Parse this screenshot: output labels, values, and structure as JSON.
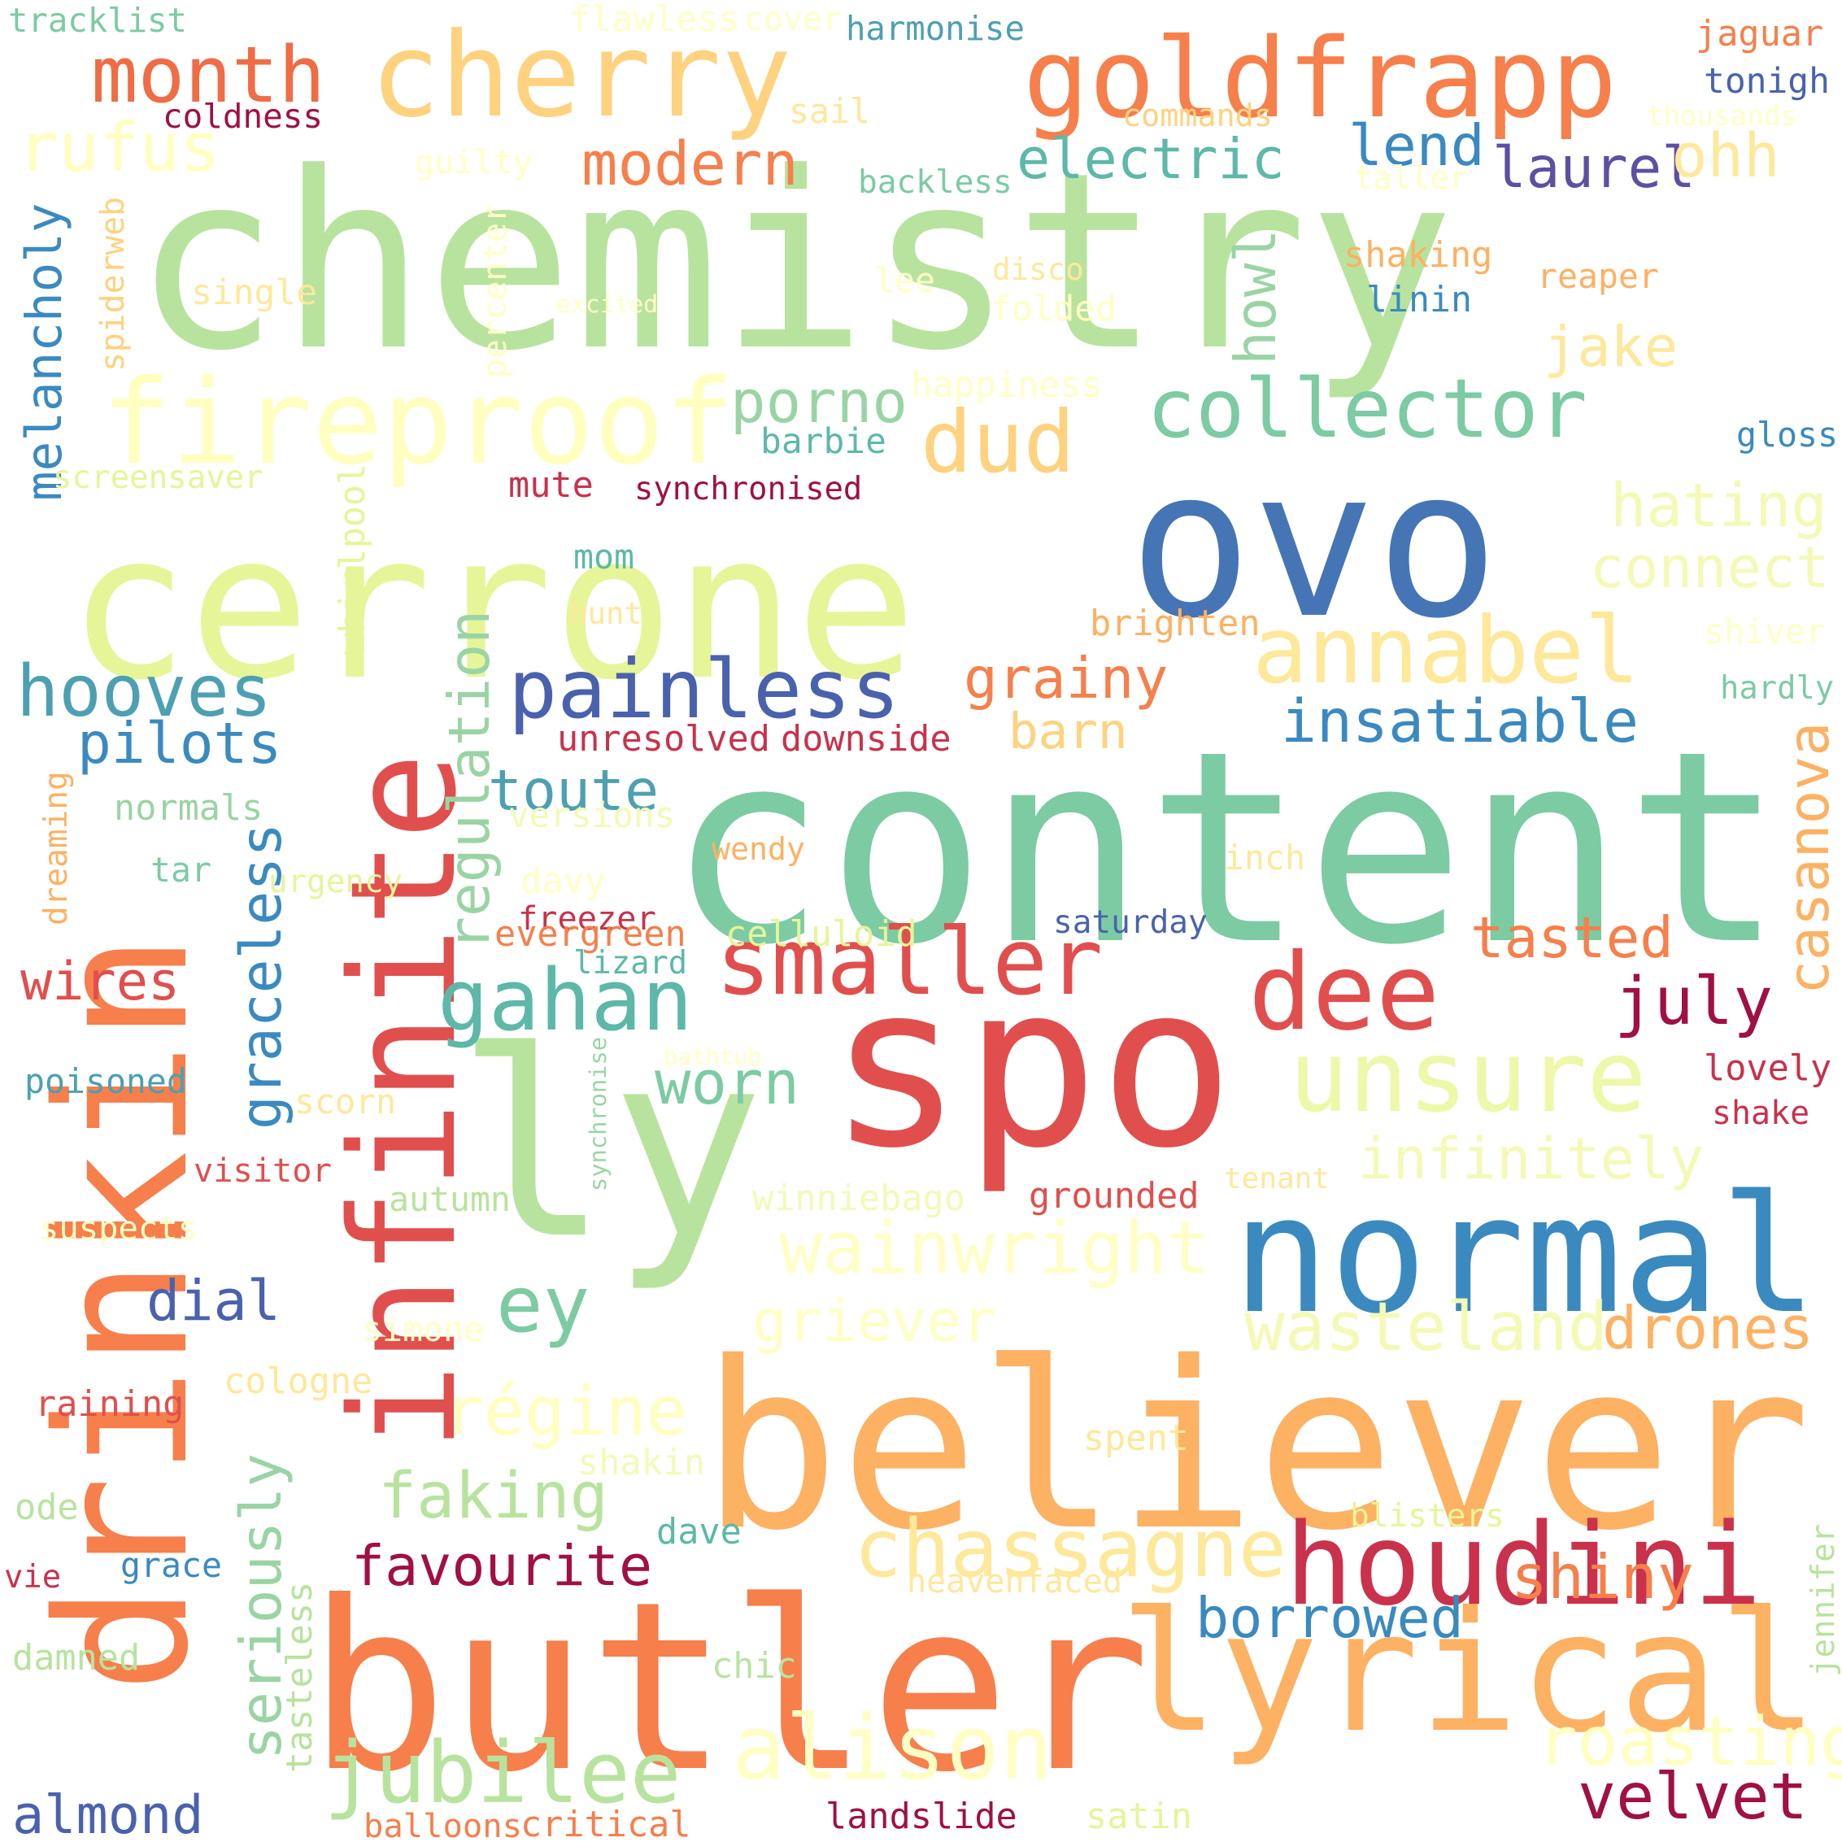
{
  "words": [
    {
      "text": "chemistry",
      "color": "#b8e39e",
      "rot": 0
    },
    {
      "text": "content",
      "color": "#7ccba2",
      "rot": 0
    },
    {
      "text": "cerrone",
      "color": "#e6f598",
      "rot": 0
    },
    {
      "text": "ovo",
      "color": "#4575b4",
      "rot": 0
    },
    {
      "text": "believer",
      "color": "#fdb162",
      "rot": 0
    },
    {
      "text": "butler",
      "color": "#f67f4b",
      "rot": 0
    },
    {
      "text": "spo",
      "color": "#e04f4e",
      "rot": 0
    },
    {
      "text": "ly",
      "color": "#b8e39e",
      "rot": 0
    },
    {
      "text": "drinkin",
      "color": "#f67f4b",
      "rot": -90
    },
    {
      "text": "infinite",
      "color": "#e04f4e",
      "rot": -90
    },
    {
      "text": "normal",
      "color": "#3a8ac0",
      "rot": 0
    },
    {
      "text": "cherry",
      "color": "#fed27f",
      "rot": 0
    },
    {
      "text": "goldfrapp",
      "color": "#f67f4b",
      "rot": 0
    },
    {
      "text": "lyrical",
      "color": "#fdb162",
      "rot": 0
    },
    {
      "text": "dee",
      "color": "#e04f4e",
      "rot": 0
    },
    {
      "text": "fireproof",
      "color": "#ffffbf",
      "rot": 0
    },
    {
      "text": "houdini",
      "color": "#c9314c",
      "rot": 0
    },
    {
      "text": "unsure",
      "color": "#eef8a9",
      "rot": 0
    },
    {
      "text": "smaller",
      "color": "#e04f4e",
      "rot": 0
    },
    {
      "text": "annabel",
      "color": "#fee89a",
      "rot": 0
    },
    {
      "text": "collector",
      "color": "#7ccba2",
      "rot": 0
    },
    {
      "text": "painless",
      "color": "#4a62ad",
      "rot": 0
    },
    {
      "text": "month",
      "color": "#ef6c45",
      "rot": 0
    },
    {
      "text": "gahan",
      "color": "#5db8a8",
      "rot": 0
    },
    {
      "text": "regulation",
      "color": "#9ad4a4",
      "rot": -90
    },
    {
      "text": "hooves",
      "color": "#4da0b1",
      "rot": 0
    },
    {
      "text": "rufus",
      "color": "#ffffbf",
      "rot": 0
    },
    {
      "text": "ey",
      "color": "#7ccba2",
      "rot": 0
    },
    {
      "text": "jubilee",
      "color": "#b8e39e",
      "rot": 0
    },
    {
      "text": "alison",
      "color": "#ffffc5",
      "rot": 0
    },
    {
      "text": "chassagne",
      "color": "#fee89a",
      "rot": 0
    },
    {
      "text": "wainwright",
      "color": "#ffffc5",
      "rot": 0
    },
    {
      "text": "wasteland",
      "color": "#f4fab6",
      "rot": 0
    },
    {
      "text": "velvet",
      "color": "#a01044",
      "rot": 0
    },
    {
      "text": "borrowed",
      "color": "#3a8ac0",
      "rot": 0
    },
    {
      "text": "dud",
      "color": "#fed27f",
      "rot": 0
    },
    {
      "text": "pilots",
      "color": "#3a8ac0",
      "rot": 0
    },
    {
      "text": "insatiable",
      "color": "#3a8ac0",
      "rot": 0
    },
    {
      "text": "toute",
      "color": "#4da0b1",
      "rot": 0
    },
    {
      "text": "graceless",
      "color": "#3a8ac0",
      "rot": -90
    },
    {
      "text": "seriously",
      "color": "#9ad4a4",
      "rot": -90
    },
    {
      "text": "faking",
      "color": "#b8e39e",
      "rot": 0
    },
    {
      "text": "favourite",
      "color": "#a01044",
      "rot": 0
    },
    {
      "text": "régine",
      "color": "#ffffbf",
      "rot": 0
    },
    {
      "text": "griever",
      "color": "#ffffc5",
      "rot": 0
    },
    {
      "text": "drones",
      "color": "#fdb162",
      "rot": 0
    },
    {
      "text": "shiny",
      "color": "#f67f4b",
      "rot": 0
    },
    {
      "text": "roasting",
      "color": "#ffffbf",
      "rot": 0
    },
    {
      "text": "infinitely",
      "color": "#f4fab6",
      "rot": 0
    },
    {
      "text": "tasted",
      "color": "#f67f4b",
      "rot": 0
    },
    {
      "text": "july",
      "color": "#a01044",
      "rot": 0
    },
    {
      "text": "casanova",
      "color": "#fdb162",
      "rot": -90
    },
    {
      "text": "hating",
      "color": "#f4fab6",
      "rot": 0
    },
    {
      "text": "connect",
      "color": "#f4fab6",
      "rot": 0
    },
    {
      "text": "grainy",
      "color": "#f67f4b",
      "rot": 0
    },
    {
      "text": "barn",
      "color": "#fed27f",
      "rot": 0
    },
    {
      "text": "porno",
      "color": "#9ad4a4",
      "rot": 0
    },
    {
      "text": "howl",
      "color": "#9ad4a4",
      "rot": -90
    },
    {
      "text": "electric",
      "color": "#5db8a8",
      "rot": 0
    },
    {
      "text": "modern",
      "color": "#f67f4b",
      "rot": 0
    },
    {
      "text": "laurel",
      "color": "#5e4fa2",
      "rot": 0
    },
    {
      "text": "lend",
      "color": "#3a8ac0",
      "rot": 0
    },
    {
      "text": "ohh",
      "color": "#fee89a",
      "rot": 0
    },
    {
      "text": "jake",
      "color": "#fee89a",
      "rot": 0
    },
    {
      "text": "melancholy",
      "color": "#3a8ac0",
      "rot": -90
    },
    {
      "text": "worn",
      "color": "#7ccba2",
      "rot": 0
    },
    {
      "text": "wires",
      "color": "#e04f4e",
      "rot": 0
    },
    {
      "text": "dial",
      "color": "#4a62ad",
      "rot": 0
    },
    {
      "text": "almond",
      "color": "#4a62ad",
      "rot": 0
    },
    {
      "text": "tracklist",
      "color": "#7ccba2",
      "rot": 0
    },
    {
      "text": "flawless",
      "color": "#ffffc5",
      "rot": 0
    },
    {
      "text": "cover",
      "color": "#ffffc5",
      "rot": 0
    },
    {
      "text": "harmonise",
      "color": "#4da0b1",
      "rot": 0
    },
    {
      "text": "jaguar",
      "color": "#f67f4b",
      "rot": 0
    },
    {
      "text": "tonigh",
      "color": "#4a62ad",
      "rot": 0
    },
    {
      "text": "coldness",
      "color": "#a01044",
      "rot": 0
    },
    {
      "text": "sail",
      "color": "#fee89a",
      "rot": 0
    },
    {
      "text": "commands",
      "color": "#fed27f",
      "rot": 0
    },
    {
      "text": "thousands",
      "color": "#ffffc5",
      "rot": 0
    },
    {
      "text": "guilty",
      "color": "#ffffc5",
      "rot": 0
    },
    {
      "text": "backless",
      "color": "#7ccba2",
      "rot": 0
    },
    {
      "text": "taller",
      "color": "#ffffc5",
      "rot": 0
    },
    {
      "text": "spiderweb",
      "color": "#fed27f",
      "rot": -90
    },
    {
      "text": "percenter",
      "color": "#ffffc5",
      "rot": -90
    },
    {
      "text": "single",
      "color": "#fee89a",
      "rot": 0
    },
    {
      "text": "excited",
      "color": "#ffffc5",
      "rot": 0
    },
    {
      "text": "lee",
      "color": "#ffffc5",
      "rot": 0
    },
    {
      "text": "disco",
      "color": "#fee89a",
      "rot": 0
    },
    {
      "text": "folded",
      "color": "#ffffc5",
      "rot": 0
    },
    {
      "text": "shaking",
      "color": "#fdb162",
      "rot": 0
    },
    {
      "text": "reaper",
      "color": "#fdb162",
      "rot": 0
    },
    {
      "text": "linin",
      "color": "#3a8ac0",
      "rot": 0
    },
    {
      "text": "happiness",
      "color": "#ffffc5",
      "rot": 0
    },
    {
      "text": "barbie",
      "color": "#5db8a8",
      "rot": 0
    },
    {
      "text": "gloss",
      "color": "#3a8ac0",
      "rot": 0
    },
    {
      "text": "screensaver",
      "color": "#e6f598",
      "rot": 0
    },
    {
      "text": "whirlpool",
      "color": "#e6f598",
      "rot": -90
    },
    {
      "text": "mute",
      "color": "#c9314c",
      "rot": 0
    },
    {
      "text": "synchronised",
      "color": "#a01044",
      "rot": 0
    },
    {
      "text": "mom",
      "color": "#5db8a8",
      "rot": 0
    },
    {
      "text": "hunt",
      "color": "#fee89a",
      "rot": 0
    },
    {
      "text": "brighten",
      "color": "#fdb162",
      "rot": 0
    },
    {
      "text": "shiver",
      "color": "#ffffc5",
      "rot": 0
    },
    {
      "text": "hardly",
      "color": "#7ccba2",
      "rot": 0
    },
    {
      "text": "unresolved",
      "color": "#c9314c",
      "rot": 0
    },
    {
      "text": "downside",
      "color": "#c9314c",
      "rot": 0
    },
    {
      "text": "normals",
      "color": "#9ad4a4",
      "rot": 0
    },
    {
      "text": "versions",
      "color": "#f4fab6",
      "rot": 0
    },
    {
      "text": "dreaming",
      "color": "#fdb162",
      "rot": -90
    },
    {
      "text": "wendy",
      "color": "#fdb162",
      "rot": 0
    },
    {
      "text": "inch",
      "color": "#fee89a",
      "rot": 0
    },
    {
      "text": "tar",
      "color": "#7ccba2",
      "rot": 0
    },
    {
      "text": "urgency",
      "color": "#e6f598",
      "rot": 0
    },
    {
      "text": "davy",
      "color": "#ffffc5",
      "rot": 0
    },
    {
      "text": "freezer",
      "color": "#c9314c",
      "rot": 0
    },
    {
      "text": "evergreen",
      "color": "#f67f4b",
      "rot": 0
    },
    {
      "text": "celluloid",
      "color": "#e6f598",
      "rot": 0
    },
    {
      "text": "saturday",
      "color": "#4a62ad",
      "rot": 0
    },
    {
      "text": "lizard",
      "color": "#5db8a8",
      "rot": 0
    },
    {
      "text": "poisoned",
      "color": "#4da0b1",
      "rot": 0
    },
    {
      "text": "bathtub",
      "color": "#ffffc5",
      "rot": 0
    },
    {
      "text": "scorn",
      "color": "#fee89a",
      "rot": 0
    },
    {
      "text": "synchronise",
      "color": "#9ad4a4",
      "rot": -90
    },
    {
      "text": "lovely",
      "color": "#c9314c",
      "rot": 0
    },
    {
      "text": "shake",
      "color": "#c9314c",
      "rot": 0
    },
    {
      "text": "visitor",
      "color": "#e04f4e",
      "rot": 0
    },
    {
      "text": "autumn",
      "color": "#b8e39e",
      "rot": 0
    },
    {
      "text": "winniebago",
      "color": "#f4fab6",
      "rot": 0
    },
    {
      "text": "tenant",
      "color": "#fee89a",
      "rot": 0
    },
    {
      "text": "grounded",
      "color": "#e04f4e",
      "rot": 0
    },
    {
      "text": "suspects",
      "color": "#ffffc5",
      "rot": 0
    },
    {
      "text": "simone",
      "color": "#ffffc5",
      "rot": 0
    },
    {
      "text": "cologne",
      "color": "#fee89a",
      "rot": 0
    },
    {
      "text": "raining",
      "color": "#e04f4e",
      "rot": 0
    },
    {
      "text": "spent",
      "color": "#fee89a",
      "rot": 0
    },
    {
      "text": "shakin",
      "color": "#f4fab6",
      "rot": 0
    },
    {
      "text": "blisters",
      "color": "#e6f598",
      "rot": 0
    },
    {
      "text": "ode",
      "color": "#b8e39e",
      "rot": 0
    },
    {
      "text": "dave",
      "color": "#5db8a8",
      "rot": 0
    },
    {
      "text": "vie",
      "color": "#c9314c",
      "rot": 0
    },
    {
      "text": "grace",
      "color": "#3a8ac0",
      "rot": 0
    },
    {
      "text": "heavenfaced",
      "color": "#fee89a",
      "rot": 0
    },
    {
      "text": "jennifer",
      "color": "#b8e39e",
      "rot": -90
    },
    {
      "text": "tasteless",
      "color": "#b8e39e",
      "rot": -90
    },
    {
      "text": "damned",
      "color": "#b8e39e",
      "rot": 0
    },
    {
      "text": "chic",
      "color": "#b8e39e",
      "rot": 0
    },
    {
      "text": "balloons",
      "color": "#f67f4b",
      "rot": 0
    },
    {
      "text": "critical",
      "color": "#f67f4b",
      "rot": 0
    },
    {
      "text": "landslide",
      "color": "#a01044",
      "rot": 0
    },
    {
      "text": "satin",
      "color": "#e6f598",
      "rot": 0
    }
  ]
}
